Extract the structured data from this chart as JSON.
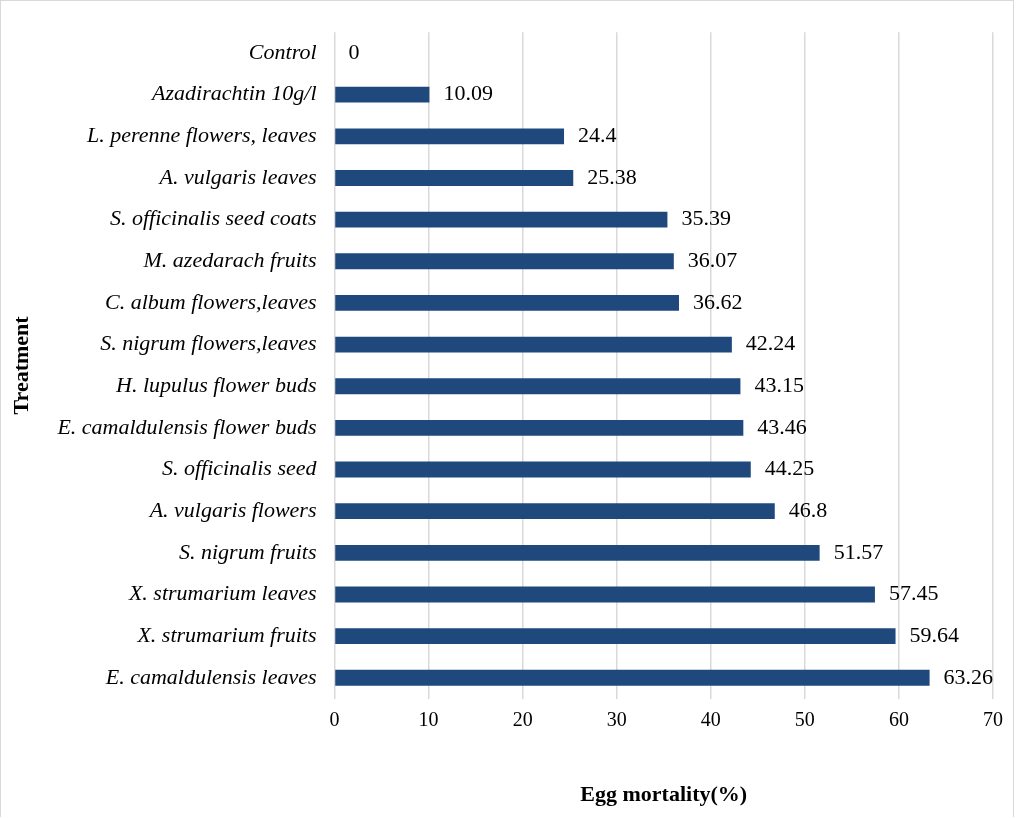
{
  "chart_data": {
    "type": "bar",
    "orientation": "horizontal",
    "xlabel": "Egg mortality(%)",
    "ylabel": "Treatment",
    "categories": [
      "Control",
      "Azadirachtin 10g/l",
      "L. perenne flowers, leaves",
      "A. vulgaris leaves",
      "S. officinalis seed coats",
      "M. azedarach fruits",
      "C. album flowers,leaves",
      "S. nigrum flowers,leaves",
      "H. lupulus flower buds",
      "E. camaldulensis flower buds",
      "S. officinalis seed",
      "A. vulgaris flowers",
      "S. nigrum fruits",
      "X. strumarium leaves",
      "X. strumarium fruits",
      "E. camaldulensis leaves"
    ],
    "values": [
      0,
      10.09,
      24.4,
      25.38,
      35.39,
      36.07,
      36.62,
      42.24,
      43.15,
      43.46,
      44.25,
      46.8,
      51.57,
      57.45,
      59.64,
      63.26
    ],
    "color": "#1f497d",
    "xlim": [
      0,
      70
    ],
    "xticks": [
      0,
      10,
      20,
      30,
      40,
      50,
      60,
      70
    ],
    "grid": "x",
    "data_labels": true
  }
}
